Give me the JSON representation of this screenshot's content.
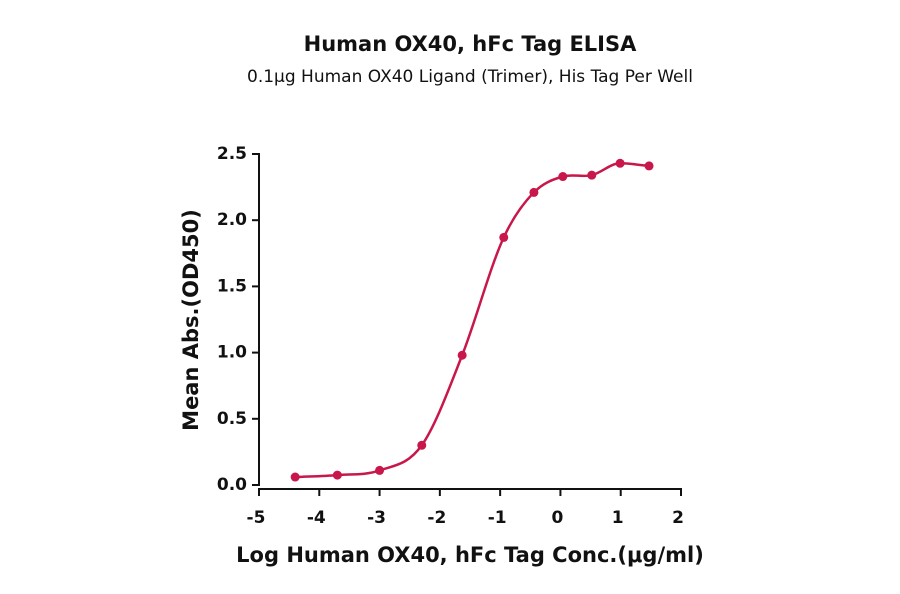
{
  "chart_data": {
    "type": "scatter",
    "title": "Human OX40, hFc Tag ELISA",
    "subtitle": "0.1μg Human OX40 Ligand (Trimer), His Tag Per Well",
    "xlabel": "Log Human OX40, hFc Tag Conc.(μg/ml)",
    "ylabel": "Mean Abs.(OD450)",
    "color": "#c8174a",
    "x": [
      -4.4,
      -3.7,
      -3.0,
      -2.3,
      -1.63,
      -0.94,
      -0.44,
      0.04,
      0.52,
      0.99,
      1.47
    ],
    "values": [
      0.06,
      0.075,
      0.11,
      0.3,
      0.98,
      1.87,
      2.21,
      2.33,
      2.34,
      2.43,
      2.41
    ],
    "xlim": [
      -5,
      2
    ],
    "xticks": [
      -5,
      -4,
      -3,
      -2,
      -1,
      0,
      1,
      2
    ],
    "ylim": [
      0,
      2.5
    ],
    "yticks": [
      {
        "value": 0,
        "label": "0.0"
      },
      {
        "value": 0.5,
        "label": "0.5"
      },
      {
        "value": 1,
        "label": "1.0"
      },
      {
        "value": 1.5,
        "label": "1.5"
      },
      {
        "value": 2,
        "label": "2.0"
      },
      {
        "value": 2.5,
        "label": "2.5"
      }
    ]
  }
}
